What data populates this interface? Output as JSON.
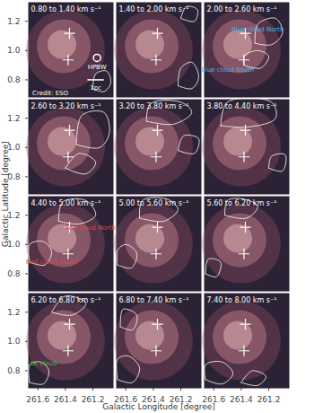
{
  "chart_data": {
    "type": "channel_map",
    "x_label": "Galactic Longitude [degree]",
    "y_label": "Galactic Latitude [degree]",
    "xlim": [
      261.67,
      261.05
    ],
    "ylim": [
      0.68,
      1.33
    ],
    "xticks": [
      261.6,
      261.4,
      261.2
    ],
    "yticks": [
      0.8,
      {
        "value": 1.0,
        "label": "1.0"
      },
      1.2
    ],
    "color": "#ffffff",
    "marker": "plus",
    "markers": [
      {
        "l": 261.37,
        "b": 1.118
      },
      {
        "l": 261.38,
        "b": 0.936
      }
    ],
    "panels": [
      {
        "label": "0.80 to 1.40 km s⁻¹",
        "contours": [
          [
            [
              261.2,
              0.74
            ],
            [
              261.12,
              0.72
            ],
            [
              261.07,
              0.78
            ],
            [
              261.1,
              0.86
            ],
            [
              261.18,
              0.84
            ],
            [
              261.2,
              0.74
            ]
          ]
        ],
        "beam": {
          "l": 261.17,
          "b": 0.95
        },
        "scale_bar": {
          "l": [
            261.24,
            261.12
          ],
          "b": 0.8
        },
        "annotations": [
          {
            "text": "HPBW",
            "l": 261.17,
            "b": 0.885,
            "color": "#ffffff"
          },
          {
            "text": "1pc",
            "l": 261.18,
            "b": 0.745,
            "color": "#ffffff"
          },
          {
            "text": "Credit: ESO",
            "l": 261.51,
            "b": 0.71,
            "color": "#ffffff"
          }
        ]
      },
      {
        "label": "1.40 to 2.00 km s⁻¹",
        "contours": [
          [
            [
              261.22,
              0.76
            ],
            [
              261.12,
              0.74
            ],
            [
              261.07,
              0.82
            ],
            [
              261.12,
              0.92
            ],
            [
              261.2,
              0.88
            ],
            [
              261.22,
              0.76
            ]
          ],
          [
            [
              261.2,
              1.22
            ],
            [
              261.1,
              1.2
            ],
            [
              261.08,
              1.28
            ],
            [
              261.16,
              1.3
            ],
            [
              261.2,
              1.22
            ]
          ]
        ],
        "annotations": []
      },
      {
        "label": "2.00 to 2.60 km s⁻¹",
        "contours": [
          [
            [
              261.3,
              1.05
            ],
            [
              261.18,
              1.04
            ],
            [
              261.1,
              1.12
            ],
            [
              261.15,
              1.22
            ],
            [
              261.28,
              1.18
            ],
            [
              261.3,
              1.05
            ]
          ],
          [
            [
              261.38,
              0.9
            ],
            [
              261.26,
              0.88
            ],
            [
              261.2,
              0.96
            ],
            [
              261.28,
              1.0
            ],
            [
              261.38,
              0.96
            ],
            [
              261.38,
              0.9
            ]
          ]
        ],
        "annotations": [
          {
            "text": "Blue cloud North",
            "l": 261.28,
            "b": 1.145,
            "color": "#41b6e6"
          },
          {
            "text": "Blue cloud South",
            "l": 261.5,
            "b": 0.87,
            "color": "#41b6e6"
          }
        ]
      },
      {
        "label": "2.60 to 3.20 km s⁻¹",
        "contours": [
          [
            [
              261.32,
              1.02
            ],
            [
              261.15,
              1.0
            ],
            [
              261.08,
              1.1
            ],
            [
              261.12,
              1.24
            ],
            [
              261.28,
              1.22
            ],
            [
              261.32,
              1.02
            ]
          ],
          [
            [
              261.4,
              0.86
            ],
            [
              261.25,
              0.82
            ],
            [
              261.18,
              0.9
            ],
            [
              261.3,
              0.96
            ],
            [
              261.4,
              0.86
            ]
          ]
        ],
        "annotations": []
      },
      {
        "label": "3.20 to 3.80 km s⁻¹",
        "contours": [
          [
            [
              261.45,
              1.18
            ],
            [
              261.25,
              1.16
            ],
            [
              261.12,
              1.24
            ],
            [
              261.2,
              1.31
            ],
            [
              261.42,
              1.3
            ],
            [
              261.45,
              1.18
            ]
          ],
          [
            [
              261.22,
              0.98
            ],
            [
              261.1,
              0.96
            ],
            [
              261.07,
              1.06
            ],
            [
              261.18,
              1.08
            ],
            [
              261.22,
              0.98
            ]
          ]
        ],
        "annotations": []
      },
      {
        "label": "3.80 to 4.40 km s⁻¹",
        "contours": [
          [
            [
              261.55,
              1.15
            ],
            [
              261.35,
              1.14
            ],
            [
              261.15,
              1.2
            ],
            [
              261.18,
              1.31
            ],
            [
              261.5,
              1.31
            ],
            [
              261.55,
              1.15
            ]
          ],
          [
            [
              261.2,
              0.86
            ],
            [
              261.1,
              0.84
            ],
            [
              261.08,
              0.95
            ],
            [
              261.18,
              0.94
            ],
            [
              261.2,
              0.86
            ]
          ]
        ],
        "annotations": []
      },
      {
        "label": "4.40 to 5.00 km s⁻¹",
        "contours": [
          [
            [
              261.45,
              1.16
            ],
            [
              261.3,
              1.14
            ],
            [
              261.18,
              1.2
            ],
            [
              261.25,
              1.3
            ],
            [
              261.42,
              1.29
            ],
            [
              261.45,
              1.16
            ]
          ],
          [
            [
              261.66,
              0.88
            ],
            [
              261.55,
              0.86
            ],
            [
              261.5,
              0.95
            ],
            [
              261.56,
              1.02
            ],
            [
              261.66,
              1.0
            ],
            [
              261.66,
              0.88
            ]
          ]
        ],
        "annotations": [
          {
            "text": "Red cloud North",
            "l": 261.22,
            "b": 1.115,
            "color": "#e8423c"
          },
          {
            "text": "Red cloud South",
            "l": 261.5,
            "b": 0.88,
            "color": "#e8423c"
          }
        ]
      },
      {
        "label": "5.00 to 5.60 km s⁻¹",
        "contours": [
          [
            [
              261.5,
              1.18
            ],
            [
              261.32,
              1.16
            ],
            [
              261.22,
              1.24
            ],
            [
              261.3,
              1.31
            ],
            [
              261.48,
              1.3
            ],
            [
              261.5,
              1.18
            ]
          ],
          [
            [
              261.66,
              0.86
            ],
            [
              261.56,
              0.84
            ],
            [
              261.52,
              0.94
            ],
            [
              261.6,
              1.0
            ],
            [
              261.66,
              0.96
            ],
            [
              261.66,
              0.86
            ]
          ]
        ],
        "annotations": []
      },
      {
        "label": "5.60 to 6.20 km s⁻¹",
        "contours": [
          [
            [
              261.52,
              1.2
            ],
            [
              261.36,
              1.18
            ],
            [
              261.28,
              1.26
            ],
            [
              261.38,
              1.31
            ],
            [
              261.5,
              1.3
            ],
            [
              261.52,
              1.2
            ]
          ],
          [
            [
              261.66,
              0.8
            ],
            [
              261.58,
              0.78
            ],
            [
              261.55,
              0.88
            ],
            [
              261.64,
              0.9
            ],
            [
              261.66,
              0.8
            ]
          ]
        ],
        "annotations": []
      },
      {
        "label": "6.20 to 6.80 km s⁻¹",
        "contours": [
          [
            [
              261.66,
              0.72
            ],
            [
              261.56,
              0.71
            ],
            [
              261.52,
              0.8
            ],
            [
              261.58,
              0.86
            ],
            [
              261.66,
              0.84
            ],
            [
              261.66,
              0.72
            ]
          ],
          [
            [
              261.5,
              1.2
            ],
            [
              261.35,
              1.18
            ],
            [
              261.25,
              1.26
            ],
            [
              261.4,
              1.31
            ],
            [
              261.5,
              1.2
            ]
          ]
        ],
        "annotations": [
          {
            "text": "SE cloud",
            "l": 261.56,
            "b": 0.85,
            "color": "#3cbf3c"
          }
        ]
      },
      {
        "label": "6.80 to 7.40 km s⁻¹",
        "contours": [
          [
            [
              261.66,
              0.74
            ],
            [
              261.55,
              0.72
            ],
            [
              261.5,
              0.82
            ],
            [
              261.58,
              0.9
            ],
            [
              261.66,
              0.88
            ],
            [
              261.66,
              0.74
            ]
          ],
          [
            [
              261.64,
              1.1
            ],
            [
              261.55,
              1.08
            ],
            [
              261.52,
              1.18
            ],
            [
              261.62,
              1.22
            ],
            [
              261.64,
              1.1
            ]
          ]
        ],
        "annotations": []
      },
      {
        "label": "7.40 to 8.00 km s⁻¹",
        "contours": [
          [
            [
              261.66,
              0.74
            ],
            [
              261.54,
              0.71
            ],
            [
              261.46,
              0.78
            ],
            [
              261.54,
              0.86
            ],
            [
              261.66,
              0.84
            ],
            [
              261.66,
              0.74
            ]
          ],
          [
            [
              261.4,
              0.72
            ],
            [
              261.28,
              0.7
            ],
            [
              261.22,
              0.76
            ],
            [
              261.32,
              0.8
            ],
            [
              261.4,
              0.72
            ]
          ]
        ],
        "annotations": []
      }
    ]
  }
}
